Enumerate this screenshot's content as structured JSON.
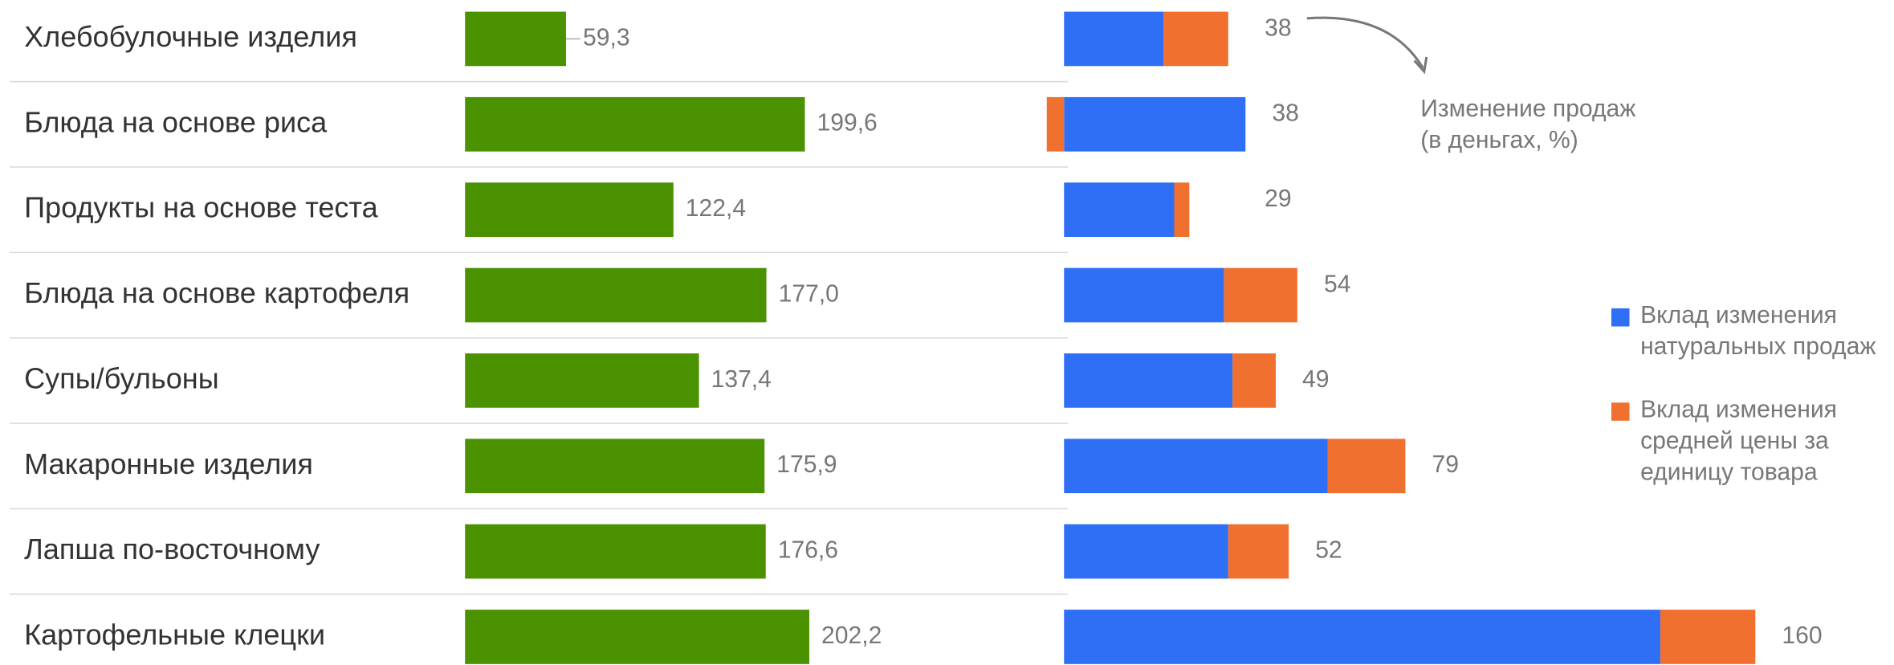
{
  "chart_data": [
    {
      "type": "bar",
      "orientation": "horizontal",
      "categories": [
        "Хлебобулочные изделия",
        "Блюда на основе риса",
        "Продукты на основе теста",
        "Блюда на основе картофеля",
        "Супы/бульоны",
        "Макаронные изделия",
        "Лапша по-восточному",
        "Картофельные клецки"
      ],
      "values": [
        59.3,
        199.6,
        122.4,
        177.0,
        137.4,
        175.9,
        176.6,
        202.2
      ],
      "value_labels": [
        "59,3",
        "199,6",
        "122,4",
        "177,0",
        "137,4",
        "175,9",
        "176,6",
        "202,2"
      ],
      "color": "#4b9200",
      "xlim": [
        0,
        210
      ],
      "grid": false
    },
    {
      "type": "stacked_bar",
      "orientation": "horizontal",
      "annotation": [
        "Изменение продаж",
        "(в деньгах, %)"
      ],
      "series": [
        {
          "name": "Вклад изменения натуральных продаж",
          "color": "#2e6ff6",
          "values": [
            23,
            42,
            25.5,
            37,
            39,
            61,
            38,
            138
          ]
        },
        {
          "name": "Вклад изменения средней цены за единицу товара",
          "color": "#f07030",
          "values": [
            15,
            -4,
            3.5,
            17,
            10,
            18,
            14,
            22
          ]
        }
      ],
      "totals": [
        38,
        38,
        29,
        54,
        49,
        79,
        52,
        160
      ],
      "xlim": [
        -5,
        170
      ],
      "grid": false,
      "legend": "right"
    }
  ]
}
